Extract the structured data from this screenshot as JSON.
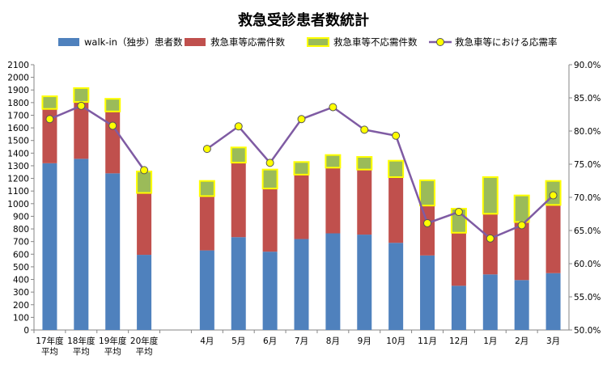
{
  "chart_data": {
    "type": "bar",
    "title": "救急受診患者数統計",
    "categories": [
      "17年度\n平均",
      "18年度\n平均",
      "19年度\n平均",
      "20年度\n平均",
      "",
      "4月",
      "5月",
      "6月",
      "7月",
      "8月",
      "9月",
      "10月",
      "11月",
      "12月",
      "1月",
      "2月",
      "3月"
    ],
    "stacked": true,
    "ylim": [
      0,
      2100
    ],
    "ytick_step": 100,
    "y2lim": [
      50,
      90
    ],
    "y2tick_step": 5,
    "y2_suffix": "%",
    "series": [
      {
        "name": "walk-in（独歩）患者数",
        "kind": "bar",
        "color": "#4F81BD",
        "values": [
          1320,
          1355,
          1240,
          595,
          null,
          630,
          735,
          620,
          720,
          765,
          755,
          690,
          590,
          350,
          440,
          395,
          450
        ]
      },
      {
        "name": "救急車等応需件数",
        "kind": "bar",
        "color": "#C0504D",
        "values": [
          430,
          450,
          490,
          490,
          null,
          430,
          590,
          500,
          510,
          520,
          515,
          520,
          395,
          420,
          480,
          460,
          540
        ]
      },
      {
        "name": "救急車等不応需件数",
        "kind": "bar",
        "color": "#9BBB59",
        "border": "#FFFF00",
        "values": [
          100,
          110,
          100,
          170,
          null,
          120,
          120,
          150,
          100,
          100,
          100,
          130,
          200,
          190,
          290,
          210,
          190
        ]
      },
      {
        "name": "救急車等における応需率",
        "kind": "line",
        "axis": "right",
        "color": "#7F5BA3",
        "marker": "#FFFF00",
        "values": [
          81.8,
          83.8,
          80.8,
          74.1,
          null,
          77.3,
          80.7,
          75.2,
          81.8,
          83.6,
          80.2,
          79.3,
          66.1,
          67.8,
          63.8,
          65.8,
          70.3
        ]
      }
    ],
    "legend_position": "top",
    "grid": false
  }
}
